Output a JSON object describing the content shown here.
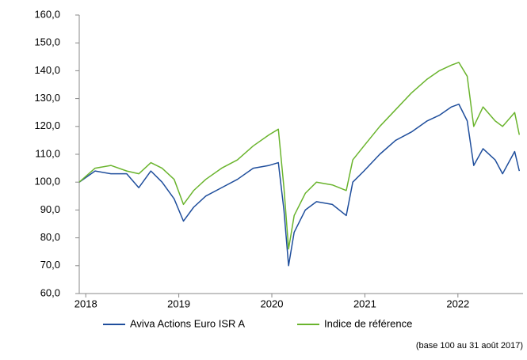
{
  "chart_data": {
    "type": "line",
    "x": [
      2017.93,
      2018.1,
      2018.27,
      2018.44,
      2018.57,
      2018.7,
      2018.82,
      2018.95,
      2019.05,
      2019.16,
      2019.29,
      2019.46,
      2019.63,
      2019.8,
      2019.97,
      2020.07,
      2020.13,
      2020.18,
      2020.24,
      2020.36,
      2020.48,
      2020.65,
      2020.8,
      2020.87,
      2020.99,
      2021.16,
      2021.33,
      2021.5,
      2021.67,
      2021.8,
      2021.93,
      2022.01,
      2022.1,
      2022.17,
      2022.27,
      2022.4,
      2022.48,
      2022.61,
      2022.66
    ],
    "series": [
      {
        "name": "Aviva Actions Euro ISR A",
        "color": "#1f4e9c",
        "values": [
          100,
          104,
          103,
          103,
          98,
          104,
          100,
          94,
          86,
          91,
          95,
          98,
          101,
          105,
          106,
          107,
          90,
          70,
          82,
          90,
          93,
          92,
          88,
          100,
          104,
          110,
          115,
          118,
          122,
          124,
          127,
          128,
          122,
          106,
          112,
          108,
          103,
          111,
          104
        ]
      },
      {
        "name": "Indice de référence",
        "color": "#6ab42d",
        "values": [
          100,
          105,
          106,
          104,
          103,
          107,
          105,
          101,
          92,
          97,
          101,
          105,
          108,
          113,
          117,
          119,
          98,
          76,
          88,
          96,
          100,
          99,
          97,
          108,
          113,
          120,
          126,
          132,
          137,
          140,
          142,
          143,
          138,
          120,
          127,
          122,
          120,
          125,
          117
        ]
      }
    ],
    "xlim": [
      2017.93,
      2022.7
    ],
    "xticks": [
      2018,
      2019,
      2020,
      2021,
      2022
    ],
    "ylim": [
      60,
      160
    ],
    "yticks": [
      {
        "value": 60,
        "label": "60,0"
      },
      {
        "value": 70,
        "label": "70,0"
      },
      {
        "value": 80,
        "label": "80,0"
      },
      {
        "value": 90,
        "label": "90,0"
      },
      {
        "value": 100,
        "label": "100,0"
      },
      {
        "value": 110,
        "label": "110,0"
      },
      {
        "value": 120,
        "label": "120,0"
      },
      {
        "value": 130,
        "label": "130,0"
      },
      {
        "value": 140,
        "label": "140,0"
      },
      {
        "value": 150,
        "label": "150,0"
      },
      {
        "value": 160,
        "label": "160,0"
      }
    ],
    "note": "(base 100 au 31 août 2017)"
  }
}
